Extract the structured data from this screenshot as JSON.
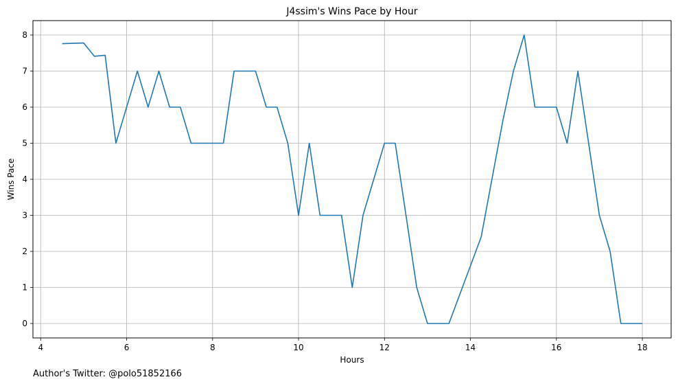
{
  "chart_data": {
    "type": "line",
    "title": "J4ssim's Wins Pace by Hour",
    "xlabel": "Hours",
    "ylabel": "Wins Pace",
    "xlim": [
      3.82,
      18.67
    ],
    "ylim": [
      -0.4,
      8.4
    ],
    "xticks": [
      4,
      6,
      8,
      10,
      12,
      14,
      16,
      18
    ],
    "yticks": [
      0,
      1,
      2,
      3,
      4,
      5,
      6,
      7,
      8
    ],
    "grid": true,
    "series": [
      {
        "color": "#1f77b4",
        "x": [
          4.5,
          5.0,
          5.25,
          5.5,
          5.75,
          6.0,
          6.25,
          6.5,
          6.75,
          7.0,
          7.25,
          7.5,
          7.75,
          8.0,
          8.25,
          8.5,
          8.75,
          9.0,
          9.25,
          9.5,
          9.75,
          10.0,
          10.25,
          10.5,
          10.75,
          11.0,
          11.25,
          11.5,
          11.75,
          12.0,
          12.25,
          12.5,
          12.75,
          13.0,
          13.25,
          13.5,
          13.75,
          14.0,
          14.25,
          14.5,
          14.75,
          15.0,
          15.25,
          15.5,
          15.75,
          16.0,
          16.25,
          16.5,
          16.75,
          17.0,
          17.25,
          17.5,
          17.75,
          18.0
        ],
        "y": [
          7.76,
          7.78,
          7.41,
          7.44,
          5.0,
          6.0,
          7.0,
          6.0,
          7.0,
          6.0,
          6.0,
          5.0,
          5.0,
          5.0,
          5.0,
          7.0,
          7.0,
          7.0,
          6.0,
          6.0,
          5.0,
          3.0,
          5.0,
          3.0,
          3.0,
          3.0,
          1.0,
          3.0,
          4.0,
          5.0,
          5.0,
          3.0,
          1.0,
          0.0,
          0.0,
          0.0,
          0.8,
          1.6,
          2.4,
          4.0,
          5.6,
          7.0,
          8.0,
          6.0,
          6.0,
          6.0,
          5.0,
          7.0,
          5.0,
          3.0,
          2.0,
          0.0,
          0.0,
          0.0
        ]
      }
    ]
  },
  "footer": {
    "author": "Author's Twitter: @polo51852166"
  }
}
